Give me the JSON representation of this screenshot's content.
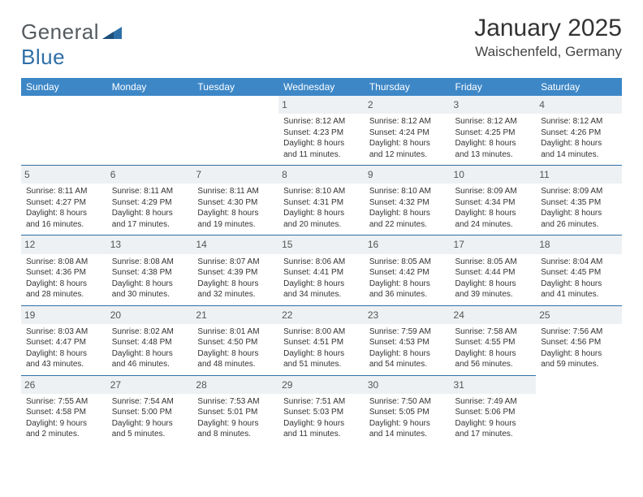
{
  "brand": {
    "name_a": "General",
    "name_b": "Blue"
  },
  "title": {
    "month": "January 2025",
    "location": "Waischenfeld, Germany"
  },
  "style": {
    "header_bg": "#3d87c7",
    "row_border": "#2f6fa7",
    "daynum_bg": "#eef1f3",
    "text_color": "#333333",
    "logo_gray": "#555b60",
    "logo_blue": "#2f6fa7",
    "font_month": 30,
    "font_location": 17,
    "font_dayheader": 12,
    "font_body": 10
  },
  "day_headers": [
    "Sunday",
    "Monday",
    "Tuesday",
    "Wednesday",
    "Thursday",
    "Friday",
    "Saturday"
  ],
  "weeks": [
    [
      null,
      null,
      null,
      {
        "n": "1",
        "sr": "8:12 AM",
        "ss": "4:23 PM",
        "dl": "8 hours and 11 minutes."
      },
      {
        "n": "2",
        "sr": "8:12 AM",
        "ss": "4:24 PM",
        "dl": "8 hours and 12 minutes."
      },
      {
        "n": "3",
        "sr": "8:12 AM",
        "ss": "4:25 PM",
        "dl": "8 hours and 13 minutes."
      },
      {
        "n": "4",
        "sr": "8:12 AM",
        "ss": "4:26 PM",
        "dl": "8 hours and 14 minutes."
      }
    ],
    [
      {
        "n": "5",
        "sr": "8:11 AM",
        "ss": "4:27 PM",
        "dl": "8 hours and 16 minutes."
      },
      {
        "n": "6",
        "sr": "8:11 AM",
        "ss": "4:29 PM",
        "dl": "8 hours and 17 minutes."
      },
      {
        "n": "7",
        "sr": "8:11 AM",
        "ss": "4:30 PM",
        "dl": "8 hours and 19 minutes."
      },
      {
        "n": "8",
        "sr": "8:10 AM",
        "ss": "4:31 PM",
        "dl": "8 hours and 20 minutes."
      },
      {
        "n": "9",
        "sr": "8:10 AM",
        "ss": "4:32 PM",
        "dl": "8 hours and 22 minutes."
      },
      {
        "n": "10",
        "sr": "8:09 AM",
        "ss": "4:34 PM",
        "dl": "8 hours and 24 minutes."
      },
      {
        "n": "11",
        "sr": "8:09 AM",
        "ss": "4:35 PM",
        "dl": "8 hours and 26 minutes."
      }
    ],
    [
      {
        "n": "12",
        "sr": "8:08 AM",
        "ss": "4:36 PM",
        "dl": "8 hours and 28 minutes."
      },
      {
        "n": "13",
        "sr": "8:08 AM",
        "ss": "4:38 PM",
        "dl": "8 hours and 30 minutes."
      },
      {
        "n": "14",
        "sr": "8:07 AM",
        "ss": "4:39 PM",
        "dl": "8 hours and 32 minutes."
      },
      {
        "n": "15",
        "sr": "8:06 AM",
        "ss": "4:41 PM",
        "dl": "8 hours and 34 minutes."
      },
      {
        "n": "16",
        "sr": "8:05 AM",
        "ss": "4:42 PM",
        "dl": "8 hours and 36 minutes."
      },
      {
        "n": "17",
        "sr": "8:05 AM",
        "ss": "4:44 PM",
        "dl": "8 hours and 39 minutes."
      },
      {
        "n": "18",
        "sr": "8:04 AM",
        "ss": "4:45 PM",
        "dl": "8 hours and 41 minutes."
      }
    ],
    [
      {
        "n": "19",
        "sr": "8:03 AM",
        "ss": "4:47 PM",
        "dl": "8 hours and 43 minutes."
      },
      {
        "n": "20",
        "sr": "8:02 AM",
        "ss": "4:48 PM",
        "dl": "8 hours and 46 minutes."
      },
      {
        "n": "21",
        "sr": "8:01 AM",
        "ss": "4:50 PM",
        "dl": "8 hours and 48 minutes."
      },
      {
        "n": "22",
        "sr": "8:00 AM",
        "ss": "4:51 PM",
        "dl": "8 hours and 51 minutes."
      },
      {
        "n": "23",
        "sr": "7:59 AM",
        "ss": "4:53 PM",
        "dl": "8 hours and 54 minutes."
      },
      {
        "n": "24",
        "sr": "7:58 AM",
        "ss": "4:55 PM",
        "dl": "8 hours and 56 minutes."
      },
      {
        "n": "25",
        "sr": "7:56 AM",
        "ss": "4:56 PM",
        "dl": "8 hours and 59 minutes."
      }
    ],
    [
      {
        "n": "26",
        "sr": "7:55 AM",
        "ss": "4:58 PM",
        "dl": "9 hours and 2 minutes."
      },
      {
        "n": "27",
        "sr": "7:54 AM",
        "ss": "5:00 PM",
        "dl": "9 hours and 5 minutes."
      },
      {
        "n": "28",
        "sr": "7:53 AM",
        "ss": "5:01 PM",
        "dl": "9 hours and 8 minutes."
      },
      {
        "n": "29",
        "sr": "7:51 AM",
        "ss": "5:03 PM",
        "dl": "9 hours and 11 minutes."
      },
      {
        "n": "30",
        "sr": "7:50 AM",
        "ss": "5:05 PM",
        "dl": "9 hours and 14 minutes."
      },
      {
        "n": "31",
        "sr": "7:49 AM",
        "ss": "5:06 PM",
        "dl": "9 hours and 17 minutes."
      },
      null
    ]
  ],
  "labels": {
    "sunrise": "Sunrise:",
    "sunset": "Sunset:",
    "daylight": "Daylight:"
  }
}
